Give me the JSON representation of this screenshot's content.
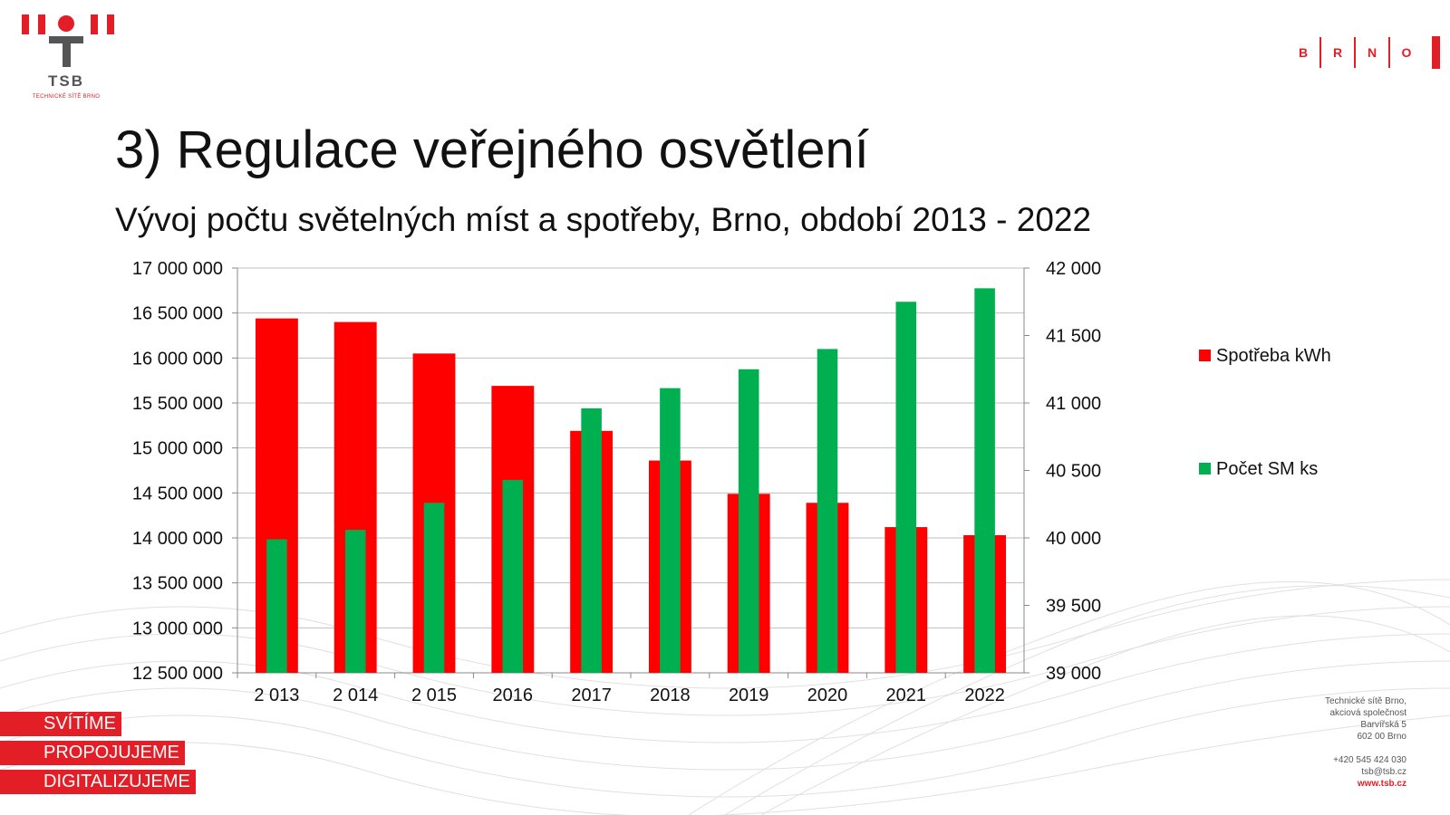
{
  "branding": {
    "tsb_name": "TSB",
    "tsb_subtitle": "TECHNICKÉ SÍTĚ BRNO",
    "brno_letters": [
      "B",
      "R",
      "N",
      "O"
    ],
    "accent_color": "#e41e26"
  },
  "slide": {
    "title": "3) Regulace veřejného osvětlení",
    "subtitle": "Vývoj počtu světelných míst a spotřeby, Brno, období 2013 - 2022"
  },
  "chart_data": {
    "type": "bar",
    "categories": [
      "2 013",
      "2 014",
      "2 015",
      "2016",
      "2017",
      "2018",
      "2019",
      "2020",
      "2021",
      "2022"
    ],
    "series": [
      {
        "name": "Spotřeba kWh",
        "color": "#ff0000",
        "axis": "left",
        "values": [
          16440000,
          16400000,
          16050000,
          15690000,
          15190000,
          14860000,
          14490000,
          14390000,
          14120000,
          14030000
        ]
      },
      {
        "name": "Počet SM ks",
        "color": "#00b050",
        "axis": "right",
        "values": [
          39990,
          40060,
          40260,
          40430,
          40960,
          41110,
          41250,
          41400,
          41750,
          41850
        ]
      }
    ],
    "left_axis": {
      "ylim": [
        12500000,
        17000000
      ],
      "ticks": [
        "12 500 000",
        "13 000 000",
        "13 500 000",
        "14 000 000",
        "14 500 000",
        "15 000 000",
        "15 500 000",
        "16 000 000",
        "16 500 000",
        "17 000 000"
      ]
    },
    "right_axis": {
      "ylim": [
        39000,
        42000
      ],
      "ticks": [
        "39 000",
        "39 500",
        "40 000",
        "40 500",
        "41 000",
        "41 500",
        "42 000"
      ]
    },
    "grid": true,
    "legend_position": "right"
  },
  "taglines": [
    "SVÍTÍME",
    "PROPOJUJEME",
    "DIGITALIZUJEME"
  ],
  "address": {
    "lines": [
      "Technické sítě Brno,",
      "akciová společnost",
      "Barvířská 5",
      "602 00 Brno"
    ],
    "phone": "+420 545 424 030",
    "email": "tsb@tsb.cz",
    "web": "www.tsb.cz"
  }
}
